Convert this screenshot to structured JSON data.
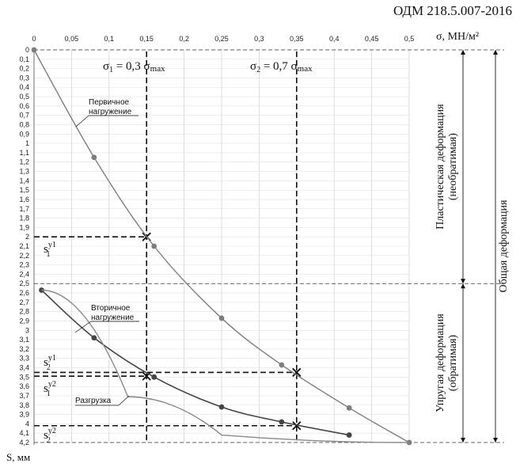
{
  "document_code": "ОДМ 218.5.007-2016",
  "chart_data": {
    "type": "line",
    "x_label": "σ, МН/м²",
    "y_label": "S, мм",
    "x_ticks": [
      "0",
      "0,05",
      "0,1",
      "0,15",
      "0,2",
      "0,25",
      "0,3",
      "0,35",
      "0,4",
      "0,45",
      "0,5"
    ],
    "y_ticks": [
      "0",
      "0,1",
      "0,2",
      "0,3",
      "0,4",
      "0,5",
      "0,6",
      "0,7",
      "0,8",
      "0,9",
      "1",
      "1,1",
      "1,2",
      "1,3",
      "1,4",
      "1,5",
      "1,6",
      "1,7",
      "1,8",
      "1,9",
      "2",
      "2,1",
      "2,2",
      "2,3",
      "2,4",
      "2,5",
      "2,6",
      "2,7",
      "2,8",
      "2,9",
      "3",
      "3,1",
      "3,2",
      "3,3",
      "3,4",
      "3,5",
      "3,6",
      "3,7",
      "3,8",
      "3,9",
      "4",
      "4,1",
      "4,2"
    ],
    "xlim": [
      0,
      0.5
    ],
    "ylim": [
      0,
      4.2
    ],
    "y_inverted": true,
    "grid": true,
    "series": [
      {
        "name": "Первичное нагружение",
        "color": "#7d7d7d",
        "points": [
          [
            0,
            0
          ],
          [
            0.08,
            1.15
          ],
          [
            0.16,
            2.1
          ],
          [
            0.25,
            2.87
          ],
          [
            0.33,
            3.37
          ],
          [
            0.42,
            3.83
          ],
          [
            0.5,
            4.2
          ]
        ]
      },
      {
        "name": "Вторичное нагружение",
        "color": "#444444",
        "points": [
          [
            0.01,
            2.57
          ],
          [
            0.08,
            3.08
          ],
          [
            0.16,
            3.5
          ],
          [
            0.25,
            3.82
          ],
          [
            0.33,
            3.98
          ],
          [
            0.42,
            4.12
          ]
        ]
      },
      {
        "name": "Разгрузка",
        "color": "#8a8a8a",
        "points": [
          [
            0.5,
            4.2
          ],
          [
            0.25,
            4.12
          ],
          [
            0.125,
            3.71
          ],
          [
            0.01,
            2.57
          ]
        ]
      }
    ],
    "vertical_markers": [
      {
        "x": 0.15,
        "label_main": "σ",
        "label_sub": "1",
        "label_rest": "= 0,3 σ",
        "label_sub2": "max"
      },
      {
        "x": 0.35,
        "label_main": "σ",
        "label_sub": "2",
        "label_rest": "= 0,7 σ",
        "label_sub2": "max"
      }
    ],
    "horizontal_markers": [
      {
        "y": 2.0,
        "x_end": 0.15,
        "label": "s",
        "sub": "1",
        "sup": "y1",
        "cross": true
      },
      {
        "y": 3.45,
        "x_end": 0.35,
        "label": "s",
        "sub": "2",
        "sup": "y1",
        "cross": true
      },
      {
        "y": 3.49,
        "x_end": 0.15,
        "label": "",
        "sub": "",
        "sup": "",
        "cross": true
      },
      {
        "y": 4.02,
        "x_end": 0.35,
        "label": "s",
        "sub": "2",
        "sup": "y2",
        "cross": true
      }
    ],
    "s1y2_label": {
      "label": "s",
      "sub": "1",
      "sup": "y2"
    },
    "zones": {
      "plastic": "Пластическая деформация (необратимая)",
      "plastic_line1": "Пластическая деформация",
      "plastic_line2": "(необратимая)",
      "elastic_line1": "Упругая деформация",
      "elastic_line2": "(обратимая)",
      "total": "Общая деформация"
    }
  }
}
